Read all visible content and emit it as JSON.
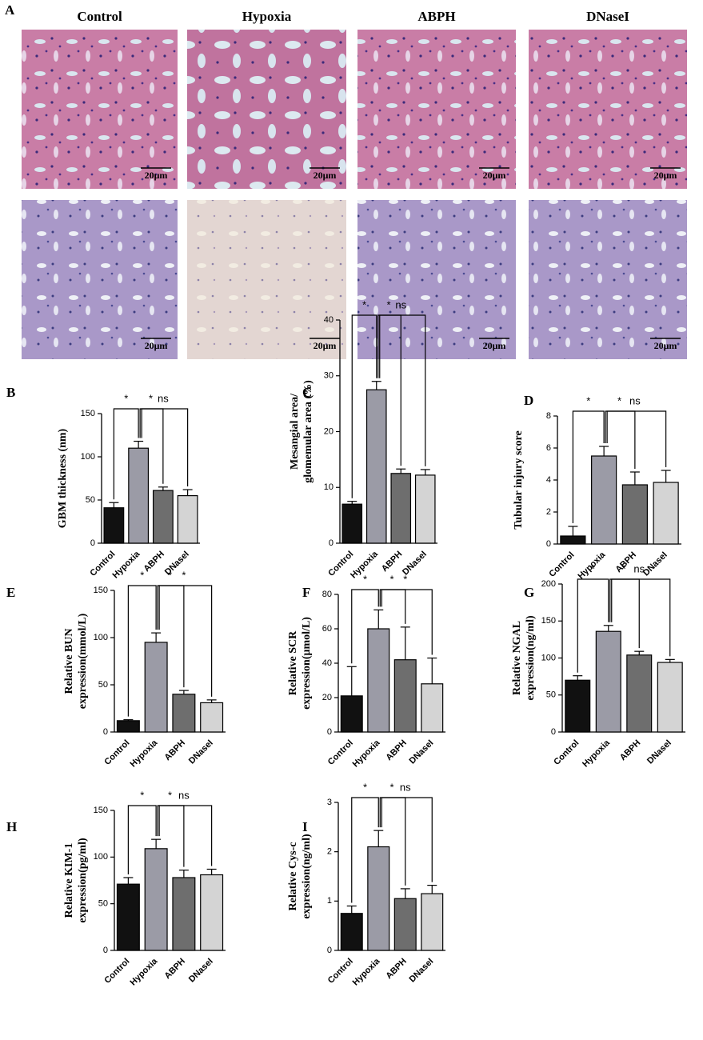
{
  "panel_a": {
    "label": "A",
    "columns": [
      "Control",
      "Hypoxia",
      "ABPH",
      "DNaseI"
    ],
    "scale_bar": "20μm"
  },
  "chart_data": [
    {
      "type": "bar",
      "panel": "B",
      "ylabel": [
        "GBM thickness (nm)"
      ],
      "categories": [
        "Control",
        "Hypoxia",
        "ABPH",
        "DNaseI"
      ],
      "values": [
        41,
        110,
        61,
        55
      ],
      "errors": [
        6,
        8,
        4,
        7
      ],
      "colors": [
        "#111111",
        "#9b9ba6",
        "#6e6e6e",
        "#d4d4d4"
      ],
      "ylim": [
        0,
        150
      ],
      "yticks": [
        0,
        50,
        100,
        150
      ],
      "annotations": [
        "*",
        "*",
        "ns"
      ]
    },
    {
      "type": "bar",
      "panel": "C",
      "ylabel": [
        "Mesangial area/",
        "glomemular area (%)"
      ],
      "categories": [
        "Control",
        "Hypoxia",
        "ABPH",
        "DNaseI"
      ],
      "values": [
        7,
        27.5,
        12.5,
        12.2
      ],
      "errors": [
        0.5,
        1.5,
        0.8,
        1
      ],
      "colors": [
        "#111111",
        "#9b9ba6",
        "#6e6e6e",
        "#d4d4d4"
      ],
      "ylim": [
        0,
        40
      ],
      "yticks": [
        0,
        10,
        20,
        30,
        40
      ],
      "annotations": [
        "*",
        "*",
        "ns"
      ]
    },
    {
      "type": "bar",
      "panel": "D",
      "ylabel": [
        "Tubular injury score"
      ],
      "categories": [
        "Control",
        "Hypoxia",
        "ABPH",
        "DNaseI"
      ],
      "values": [
        0.5,
        5.5,
        3.7,
        3.85
      ],
      "errors": [
        0.6,
        0.6,
        0.8,
        0.75
      ],
      "colors": [
        "#111111",
        "#9b9ba6",
        "#6e6e6e",
        "#d4d4d4"
      ],
      "ylim": [
        0,
        8
      ],
      "yticks": [
        0,
        2,
        4,
        6,
        8
      ],
      "annotations": [
        "*",
        "*",
        "ns"
      ]
    },
    {
      "type": "bar",
      "panel": "E",
      "ylabel": [
        "Relative BUN",
        "expression(mmol/L)"
      ],
      "categories": [
        "Control",
        "Hypoxia",
        "ABPH",
        "DNaseI"
      ],
      "values": [
        12,
        95,
        40,
        31
      ],
      "errors": [
        1,
        10,
        4,
        3
      ],
      "colors": [
        "#111111",
        "#9b9ba6",
        "#6e6e6e",
        "#d4d4d4"
      ],
      "ylim": [
        0,
        150
      ],
      "yticks": [
        0,
        50,
        100,
        150
      ],
      "annotations": [
        "*",
        "*",
        "*"
      ]
    },
    {
      "type": "bar",
      "panel": "F",
      "ylabel": [
        "Relative SCR",
        "expression(μmol/L)"
      ],
      "categories": [
        "Control",
        "Hypoxia",
        "ABPH",
        "DNaseI"
      ],
      "values": [
        21,
        60,
        42,
        28
      ],
      "errors": [
        17,
        11,
        19,
        15
      ],
      "colors": [
        "#111111",
        "#9b9ba6",
        "#6e6e6e",
        "#d4d4d4"
      ],
      "ylim": [
        0,
        80
      ],
      "yticks": [
        0,
        20,
        40,
        60,
        80
      ],
      "annotations": [
        "*",
        "*",
        "*"
      ]
    },
    {
      "type": "bar",
      "panel": "G",
      "ylabel": [
        "Relative NGAL",
        "expression(ng/ml)"
      ],
      "categories": [
        "Control",
        "Hypoxia",
        "ABPH",
        "DNaseI"
      ],
      "values": [
        70,
        136,
        104,
        94
      ],
      "errors": [
        6,
        8,
        5,
        4
      ],
      "colors": [
        "#111111",
        "#9b9ba6",
        "#6e6e6e",
        "#d4d4d4"
      ],
      "ylim": [
        0,
        200
      ],
      "yticks": [
        0,
        50,
        100,
        150,
        200
      ],
      "annotations": [
        "*",
        "*",
        "ns"
      ]
    },
    {
      "type": "bar",
      "panel": "H",
      "ylabel": [
        "Relative KIM-1",
        "expression(pg/ml)"
      ],
      "categories": [
        "Control",
        "Hypoxia",
        "ABPH",
        "DNaseI"
      ],
      "values": [
        71,
        109,
        78,
        81
      ],
      "errors": [
        7,
        10,
        8,
        6
      ],
      "colors": [
        "#111111",
        "#9b9ba6",
        "#6e6e6e",
        "#d4d4d4"
      ],
      "ylim": [
        0,
        150
      ],
      "yticks": [
        0,
        50,
        100,
        150
      ],
      "annotations": [
        "*",
        "*",
        "ns"
      ]
    },
    {
      "type": "bar",
      "panel": "I",
      "ylabel": [
        "Relative Cys-c",
        "expression(ng/ml)"
      ],
      "categories": [
        "Control",
        "Hypoxia",
        "ABPH",
        "DNaseI"
      ],
      "values": [
        0.75,
        2.1,
        1.05,
        1.15
      ],
      "errors": [
        0.15,
        0.33,
        0.2,
        0.17
      ],
      "colors": [
        "#111111",
        "#9b9ba6",
        "#6e6e6e",
        "#d4d4d4"
      ],
      "ylim": [
        0,
        3
      ],
      "yticks": [
        0,
        1,
        2,
        3
      ],
      "annotations": [
        "*",
        "*",
        "ns"
      ]
    }
  ]
}
